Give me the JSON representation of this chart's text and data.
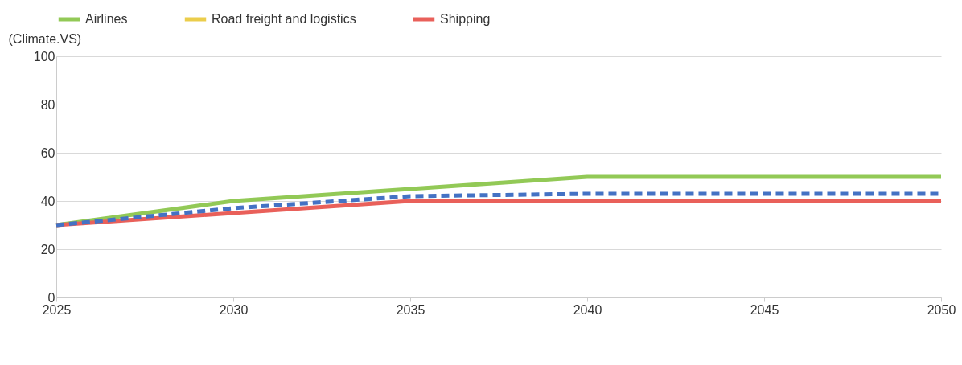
{
  "chart_data": {
    "type": "line",
    "ylabel": "(Climate.VS)",
    "x": [
      2025,
      2030,
      2035,
      2040,
      2045,
      2050
    ],
    "xlim": [
      2025,
      2050
    ],
    "xticks": [
      2025,
      2030,
      2035,
      2040,
      2045,
      2050
    ],
    "ylim": [
      0,
      100
    ],
    "yticks": [
      0,
      20,
      40,
      60,
      80,
      100
    ],
    "grid": "y",
    "legend": "top",
    "marker": "none",
    "series": [
      {
        "name": "Airlines",
        "color": "#92c956",
        "values": [
          30,
          40,
          45,
          50,
          50,
          50
        ]
      },
      {
        "name": "Road freight and logistics",
        "color": "#ebcd4b",
        "values": [
          null,
          null,
          null,
          null,
          null,
          null
        ]
      },
      {
        "name": "Shipping",
        "color": "#e9605a",
        "values": [
          30,
          35,
          40,
          40,
          40,
          40
        ]
      },
      {
        "color": "#4472c4",
        "line_style": "dashed",
        "values": [
          30,
          37,
          42,
          43,
          43,
          43
        ]
      }
    ]
  }
}
